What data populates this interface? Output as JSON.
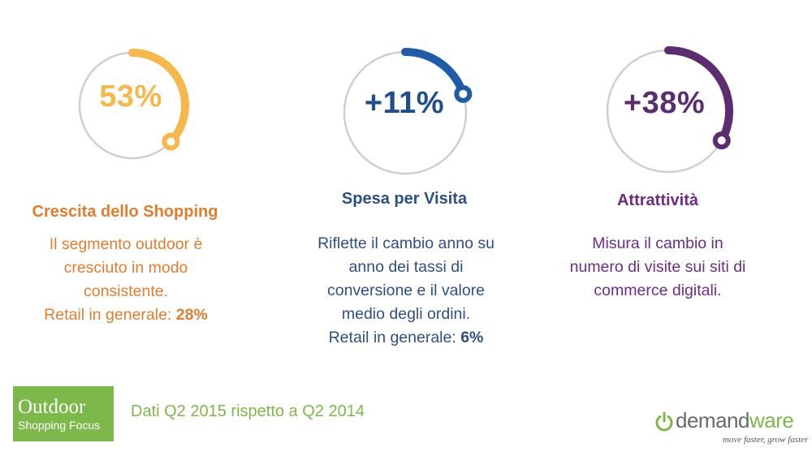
{
  "stats": [
    {
      "value": "53%",
      "fill_fraction": 0.37,
      "color": "#f6b84a",
      "heading": "Crescita dello Shopping",
      "lines": [
        "Il segmento outdoor è",
        "cresciuto in modo",
        "consistente."
      ],
      "retail_label": "Retail in generale:",
      "retail_value": "28%"
    },
    {
      "value": "+11%",
      "fill_fraction": 0.2,
      "color": "#1f5ba6",
      "heading": "Spesa per Visita",
      "lines": [
        "Riflette il cambio anno su",
        "anno dei tassi di",
        "conversione e il valore",
        "medio degli ordini."
      ],
      "retail_label": "Retail in generale:",
      "retail_value": "6%"
    },
    {
      "value": "+38%",
      "fill_fraction": 0.33,
      "color": "#5b2c6f",
      "heading": "Attrattività",
      "lines": [
        "Misura il cambio in",
        "numero di visite sui siti di",
        "commerce digitali."
      ]
    }
  ],
  "footer": {
    "brand_title": "Outdoor",
    "brand_subtitle": "Shopping Focus",
    "caption": "Dati Q2 2015 rispetto a Q2 2014",
    "logo_part1": "demand",
    "logo_part2": "ware",
    "logo_tagline": "move faster, grow faster"
  },
  "colors": {
    "ring_gray": "#cfcfcf",
    "green": "#7db84a"
  }
}
